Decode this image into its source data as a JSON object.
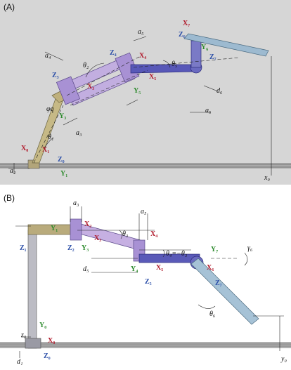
{
  "panels": [
    {
      "id": "A",
      "label": "(A)"
    },
    {
      "id": "B",
      "label": "(B)"
    }
  ],
  "colors": {
    "x_axis": "#b0182a",
    "y_axis": "#2e8b2e",
    "z_axis": "#2c4fa8",
    "background_a": "#d3d3d3",
    "link_tan": "#b8a878",
    "link_purple": "#b7a0d6",
    "link_blue": "#5b5bb5",
    "link_gray": "#9fb2be",
    "effector_blue": "#8fb2c9",
    "rail": "#a0a0a0"
  },
  "labelsA": {
    "a2": "a₂",
    "a3": "a₃",
    "a4": "a₄",
    "a5": "a₅",
    "a6": "a₆",
    "d6": "d₆",
    "x0": "x₀",
    "theta1": "θ₁",
    "theta2": "θ₂",
    "theta5": "θ₅",
    "phi_q": "φq",
    "X0": "X₀",
    "X1": "X₁",
    "Z0": "Z₀",
    "Y1": "Y₁",
    "Z3": "Z₃",
    "Y3": "Y₃",
    "X3": "X₃",
    "Z4": "Z₄",
    "X4": "X₄",
    "Y5": "Y₅",
    "X5": "X₅",
    "X7": "X₇",
    "Z6": "Z₆",
    "Y6": "Y₆",
    "Z7": "Z₇"
  },
  "labelsB": {
    "a3": "a₃",
    "a5": "a₅",
    "d1": "d₁",
    "d5": "d₅",
    "z0": "z₀",
    "y0": "y₀",
    "theta3": "θ₃",
    "theta4eq": "θ₄=−θ₃",
    "theta6": "θ₆",
    "gamma6": "γ₆",
    "Y1": "Y₁",
    "Z1": "Z₁",
    "X2": "X₂",
    "Z2": "Z₂",
    "Y3": "Y₃",
    "X3": "X₃",
    "X4": "X₄",
    "Y4": "Y₄",
    "Z5": "Z₅",
    "X5": "X₅",
    "Y7": "Y₇",
    "X6": "X₆",
    "Z7": "Z₇",
    "Y0": "Y₀",
    "X0": "X₀",
    "Z0": "Z₀"
  }
}
